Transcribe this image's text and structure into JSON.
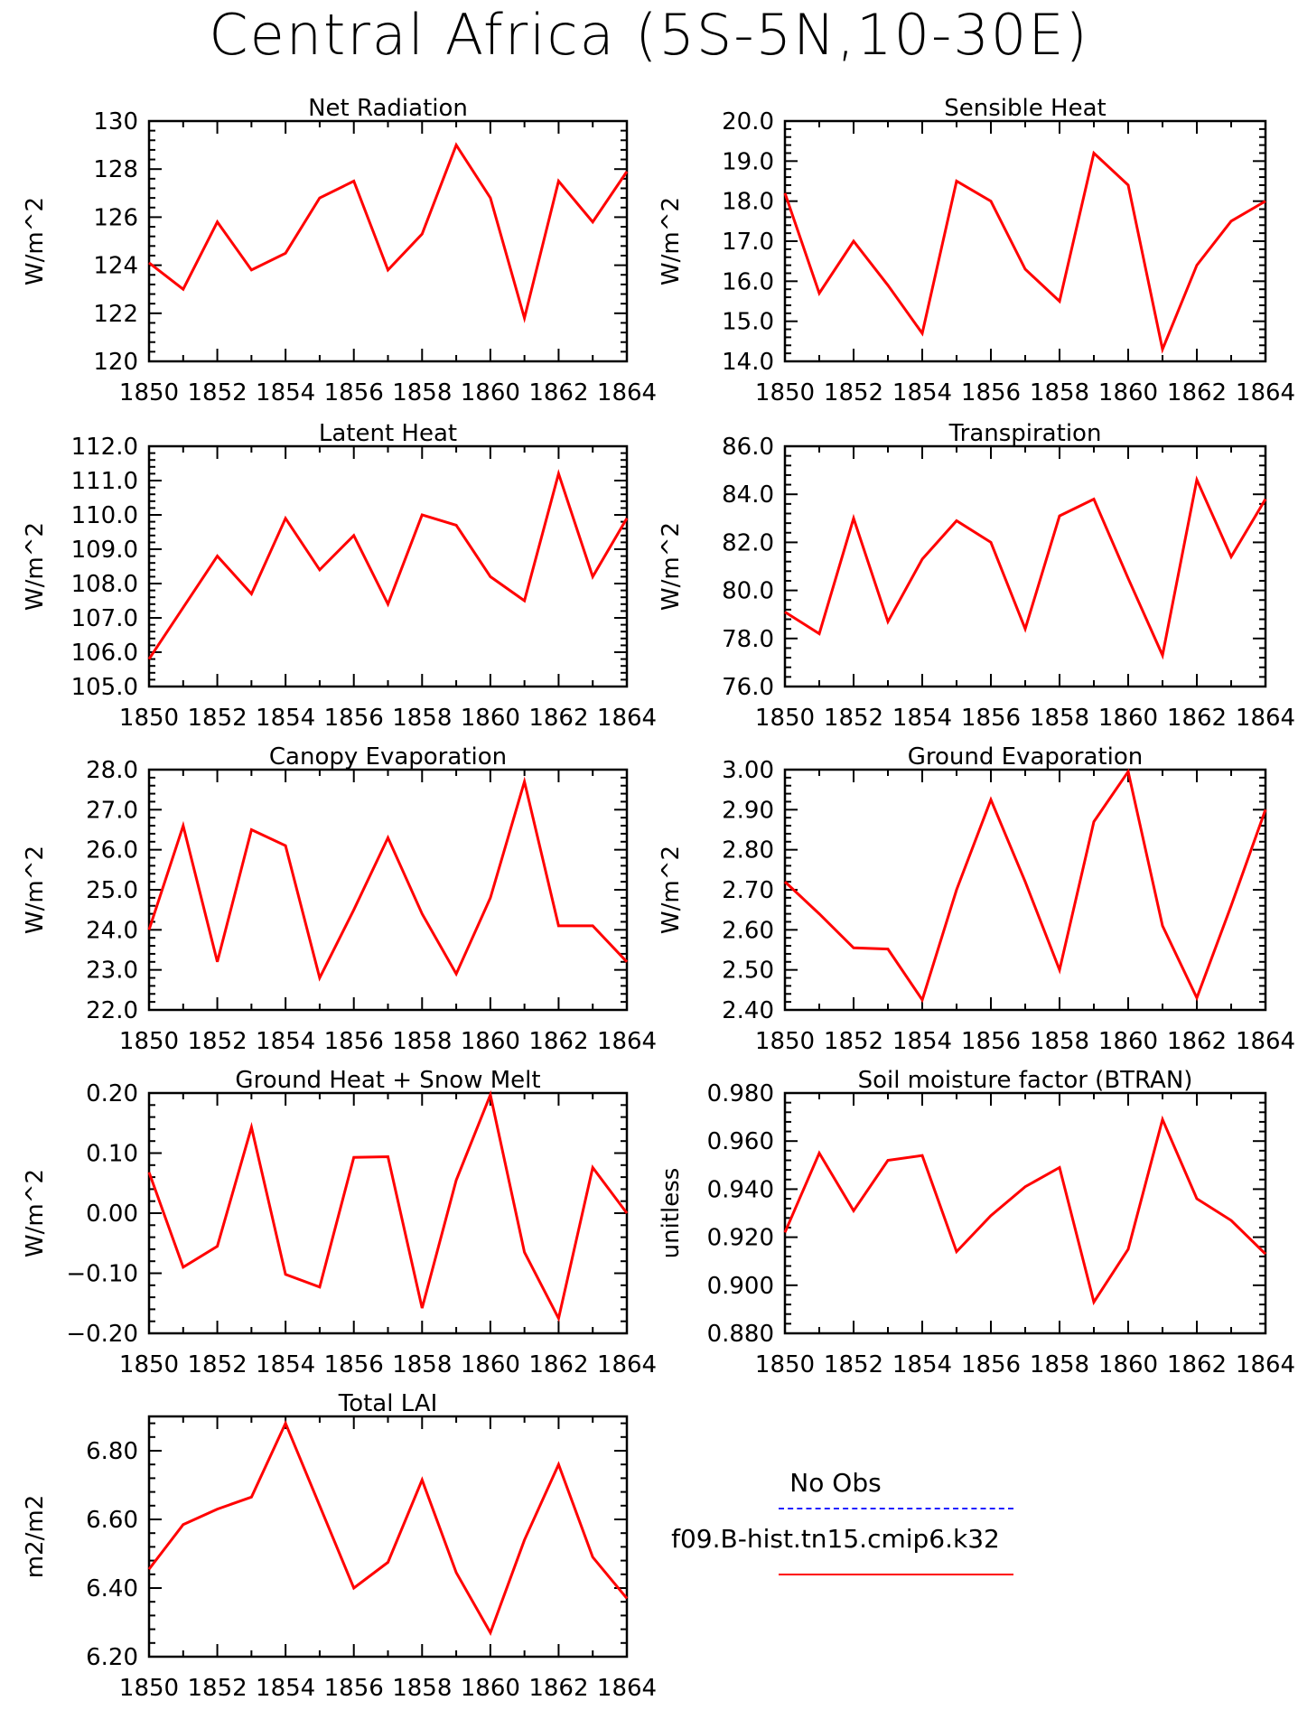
{
  "title": "Central Africa (5S-5N,10-30E)",
  "colors": {
    "series": "#ff0000",
    "obs": "#2222ff",
    "axis": "#000000"
  },
  "legend": {
    "obs_label": "No Obs",
    "case_label": "f09.B-hist.tn15.cmip6.k32"
  },
  "chart_data": [
    {
      "type": "line",
      "title": "Net Radiation",
      "ylabel": "W/m^2",
      "x": [
        1850,
        1851,
        1852,
        1853,
        1854,
        1855,
        1856,
        1857,
        1858,
        1859,
        1860,
        1861,
        1862,
        1863,
        1864
      ],
      "xlim": [
        1850,
        1864
      ],
      "xticks": [
        "1850",
        "1852",
        "1854",
        "1856",
        "1858",
        "1860",
        "1862",
        "1864"
      ],
      "ylim": [
        120,
        130
      ],
      "yticks": [
        "120",
        "122",
        "124",
        "126",
        "128",
        "130"
      ],
      "series": [
        {
          "values": [
            124.1,
            123.0,
            125.8,
            123.8,
            124.5,
            126.8,
            127.5,
            123.8,
            125.3,
            129.0,
            126.8,
            121.8,
            127.5,
            125.8,
            127.9
          ]
        }
      ]
    },
    {
      "type": "line",
      "title": "Sensible Heat",
      "ylabel": "W/m^2",
      "x": [
        1850,
        1851,
        1852,
        1853,
        1854,
        1855,
        1856,
        1857,
        1858,
        1859,
        1860,
        1861,
        1862,
        1863,
        1864
      ],
      "xlim": [
        1850,
        1864
      ],
      "xticks": [
        "1850",
        "1852",
        "1854",
        "1856",
        "1858",
        "1860",
        "1862",
        "1864"
      ],
      "ylim": [
        14,
        20
      ],
      "yticks": [
        "14.0",
        "15.0",
        "16.0",
        "17.0",
        "18.0",
        "19.0",
        "20.0"
      ],
      "series": [
        {
          "values": [
            18.2,
            15.7,
            17.0,
            15.9,
            14.7,
            18.5,
            18.0,
            16.3,
            15.5,
            19.2,
            18.4,
            14.3,
            16.4,
            17.5,
            18.0
          ]
        }
      ]
    },
    {
      "type": "line",
      "title": "Latent Heat",
      "ylabel": "W/m^2",
      "x": [
        1850,
        1851,
        1852,
        1853,
        1854,
        1855,
        1856,
        1857,
        1858,
        1859,
        1860,
        1861,
        1862,
        1863,
        1864
      ],
      "xlim": [
        1850,
        1864
      ],
      "xticks": [
        "1850",
        "1852",
        "1854",
        "1856",
        "1858",
        "1860",
        "1862",
        "1864"
      ],
      "ylim": [
        105,
        112
      ],
      "yticks": [
        "105.0",
        "106.0",
        "107.0",
        "108.0",
        "109.0",
        "110.0",
        "111.0",
        "112.0"
      ],
      "series": [
        {
          "values": [
            105.8,
            107.3,
            108.8,
            107.7,
            109.9,
            108.4,
            109.4,
            107.4,
            110.0,
            109.7,
            108.2,
            107.5,
            111.2,
            108.2,
            109.9
          ]
        }
      ]
    },
    {
      "type": "line",
      "title": "Transpiration",
      "ylabel": "W/m^2",
      "x": [
        1850,
        1851,
        1852,
        1853,
        1854,
        1855,
        1856,
        1857,
        1858,
        1859,
        1860,
        1861,
        1862,
        1863,
        1864
      ],
      "xlim": [
        1850,
        1864
      ],
      "xticks": [
        "1850",
        "1852",
        "1854",
        "1856",
        "1858",
        "1860",
        "1862",
        "1864"
      ],
      "ylim": [
        76,
        86
      ],
      "yticks": [
        "76.0",
        "78.0",
        "80.0",
        "82.0",
        "84.0",
        "86.0"
      ],
      "series": [
        {
          "values": [
            79.1,
            78.2,
            83.0,
            78.7,
            81.3,
            82.9,
            82.0,
            78.4,
            83.1,
            83.8,
            80.5,
            77.3,
            84.6,
            81.4,
            83.8
          ]
        }
      ]
    },
    {
      "type": "line",
      "title": "Canopy Evaporation",
      "ylabel": "W/m^2",
      "x": [
        1850,
        1851,
        1852,
        1853,
        1854,
        1855,
        1856,
        1857,
        1858,
        1859,
        1860,
        1861,
        1862,
        1863,
        1864
      ],
      "xlim": [
        1850,
        1864
      ],
      "xticks": [
        "1850",
        "1852",
        "1854",
        "1856",
        "1858",
        "1860",
        "1862",
        "1864"
      ],
      "ylim": [
        22,
        28
      ],
      "yticks": [
        "22.0",
        "23.0",
        "24.0",
        "25.0",
        "26.0",
        "27.0",
        "28.0"
      ],
      "series": [
        {
          "values": [
            24.0,
            26.6,
            23.2,
            26.5,
            26.1,
            22.8,
            24.5,
            26.3,
            24.4,
            22.9,
            24.8,
            27.7,
            24.1,
            24.1,
            23.2
          ]
        }
      ]
    },
    {
      "type": "line",
      "title": "Ground Evaporation",
      "ylabel": "W/m^2",
      "x": [
        1850,
        1851,
        1852,
        1853,
        1854,
        1855,
        1856,
        1857,
        1858,
        1859,
        1860,
        1861,
        1862,
        1863,
        1864
      ],
      "xlim": [
        1850,
        1864
      ],
      "xticks": [
        "1850",
        "1852",
        "1854",
        "1856",
        "1858",
        "1860",
        "1862",
        "1864"
      ],
      "ylim": [
        2.4,
        3.0
      ],
      "yticks": [
        "2.40",
        "2.50",
        "2.60",
        "2.70",
        "2.80",
        "2.90",
        "3.00"
      ],
      "series": [
        {
          "values": [
            2.72,
            2.64,
            2.555,
            2.552,
            2.425,
            2.7,
            2.925,
            2.72,
            2.5,
            2.87,
            2.995,
            2.61,
            2.43,
            2.66,
            2.9
          ]
        }
      ]
    },
    {
      "type": "line",
      "title": "Ground Heat + Snow Melt",
      "ylabel": "W/m^2",
      "x": [
        1850,
        1851,
        1852,
        1853,
        1854,
        1855,
        1856,
        1857,
        1858,
        1859,
        1860,
        1861,
        1862,
        1863,
        1864
      ],
      "xlim": [
        1850,
        1864
      ],
      "xticks": [
        "1850",
        "1852",
        "1854",
        "1856",
        "1858",
        "1860",
        "1862",
        "1864"
      ],
      "ylim": [
        -0.2,
        0.2
      ],
      "yticks": [
        "−0.20",
        "−0.10",
        "0.00",
        "0.10",
        "0.20"
      ],
      "series": [
        {
          "values": [
            0.068,
            -0.09,
            -0.055,
            0.143,
            -0.102,
            -0.123,
            0.093,
            0.094,
            -0.158,
            0.055,
            0.197,
            -0.065,
            -0.175,
            0.076,
            0.0
          ]
        }
      ]
    },
    {
      "type": "line",
      "title": "Soil moisture factor (BTRAN)",
      "ylabel": "unitless",
      "x": [
        1850,
        1851,
        1852,
        1853,
        1854,
        1855,
        1856,
        1857,
        1858,
        1859,
        1860,
        1861,
        1862,
        1863,
        1864
      ],
      "xlim": [
        1850,
        1864
      ],
      "xticks": [
        "1850",
        "1852",
        "1854",
        "1856",
        "1858",
        "1860",
        "1862",
        "1864"
      ],
      "ylim": [
        0.88,
        0.98
      ],
      "yticks": [
        "0.880",
        "0.900",
        "0.920",
        "0.940",
        "0.960",
        "0.980"
      ],
      "series": [
        {
          "values": [
            0.922,
            0.955,
            0.931,
            0.952,
            0.954,
            0.914,
            0.929,
            0.941,
            0.949,
            0.893,
            0.915,
            0.969,
            0.936,
            0.927,
            0.913
          ]
        }
      ]
    },
    {
      "type": "line",
      "title": "Total LAI",
      "ylabel": "m2/m2",
      "x": [
        1850,
        1851,
        1852,
        1853,
        1854,
        1855,
        1856,
        1857,
        1858,
        1859,
        1860,
        1861,
        1862,
        1863,
        1864
      ],
      "xlim": [
        1850,
        1864
      ],
      "xticks": [
        "1850",
        "1852",
        "1854",
        "1856",
        "1858",
        "1860",
        "1862",
        "1864"
      ],
      "ylim": [
        6.2,
        6.9
      ],
      "yticks": [
        "6.20",
        "6.40",
        "6.60",
        "6.80"
      ],
      "series": [
        {
          "values": [
            6.455,
            6.585,
            6.63,
            6.665,
            6.88,
            6.64,
            6.4,
            6.475,
            6.715,
            6.445,
            6.27,
            6.54,
            6.76,
            6.49,
            6.37
          ]
        }
      ]
    }
  ]
}
